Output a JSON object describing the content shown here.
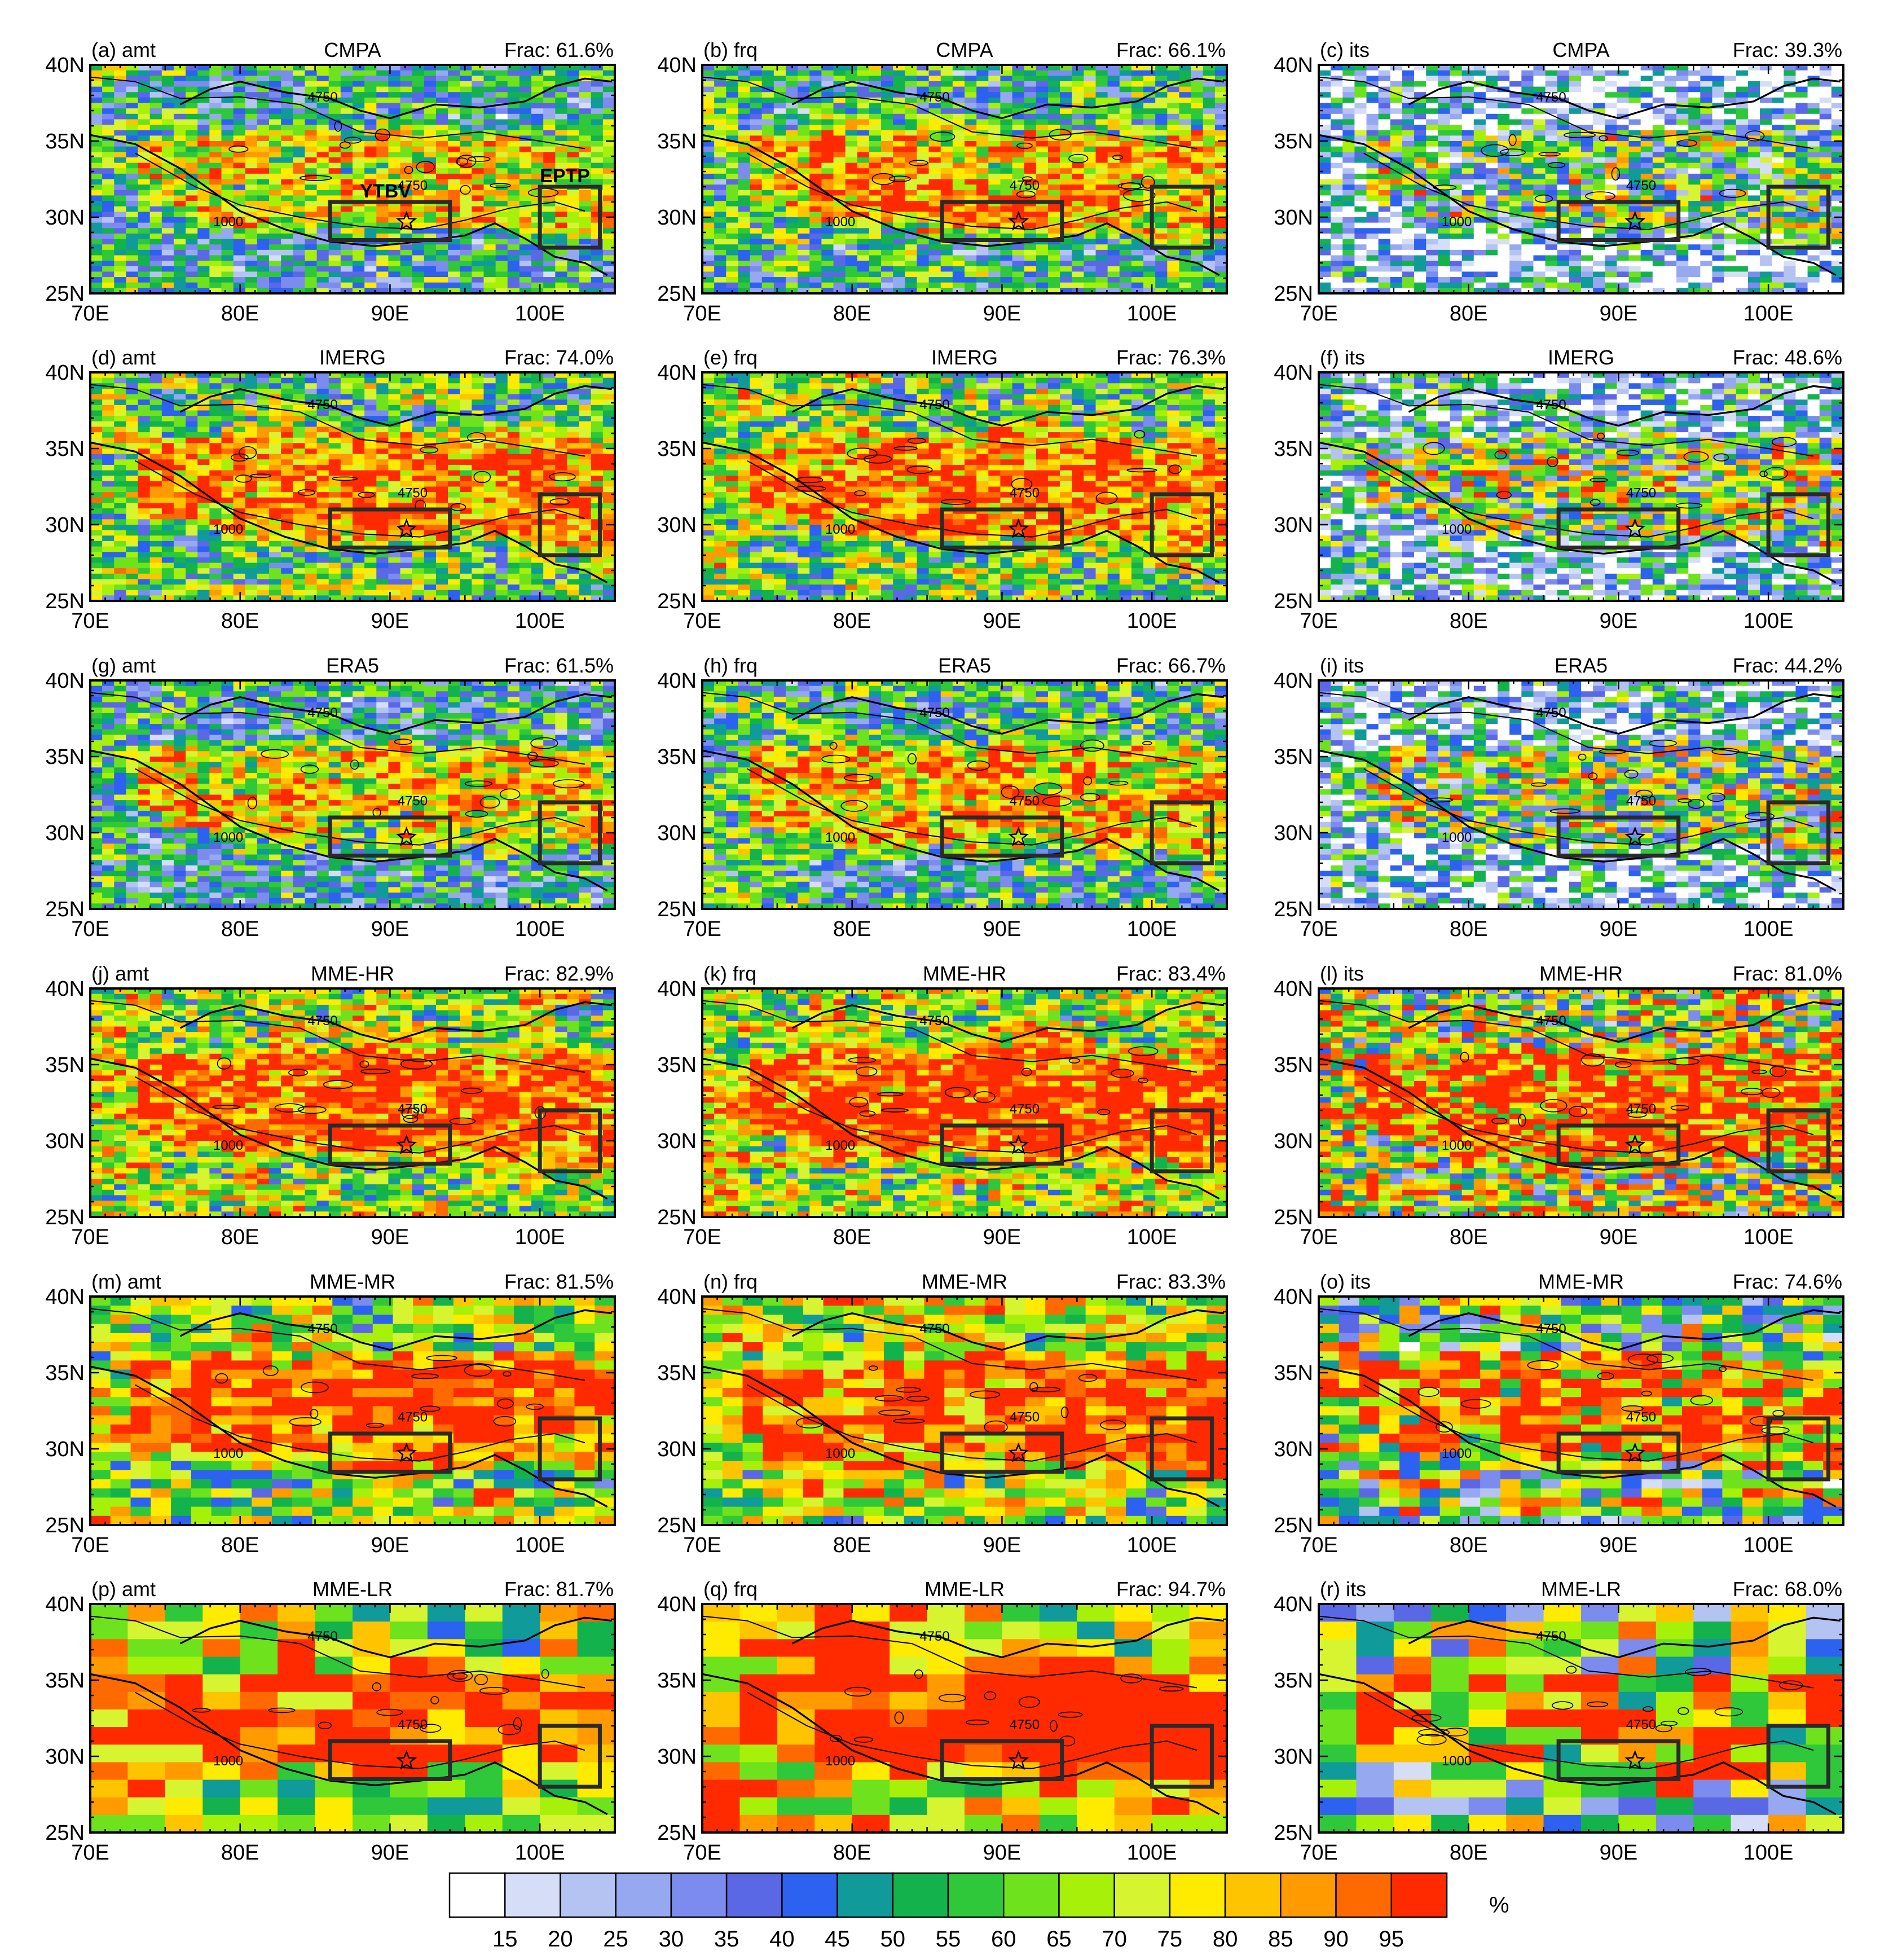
{
  "figure": {
    "legend_unit": "%",
    "colorbar": {
      "labels": [
        "15",
        "20",
        "25",
        "30",
        "35",
        "40",
        "45",
        "50",
        "55",
        "60",
        "65",
        "70",
        "75",
        "80",
        "85",
        "90",
        "95"
      ],
      "colors": [
        "#ffffff",
        "#d6ddf7",
        "#b5c3f2",
        "#96a9f0",
        "#7b8cee",
        "#5b68e6",
        "#2d61f0",
        "#109a9a",
        "#14b24c",
        "#2fc83a",
        "#6fe21e",
        "#a6f00a",
        "#d6f430",
        "#ffeb00",
        "#ffc400",
        "#ff9a00",
        "#ff6a00",
        "#ff2a00"
      ]
    },
    "axes": {
      "lon_ticks": [
        "70E",
        "80E",
        "90E",
        "100E"
      ],
      "lat_ticks": [
        "40N",
        "35N",
        "30N",
        "25N"
      ]
    },
    "contour_labels": [
      "4750",
      "1000"
    ],
    "annotations": {
      "ytbv": "YTBV",
      "eptp": "EPTP"
    }
  },
  "chart_data": {
    "type": "heatmap",
    "description_units": "%",
    "lon_range": [
      70,
      105
    ],
    "lat_range": [
      25,
      40
    ],
    "boxes": [
      {
        "name": "YTBV",
        "lon": [
          86,
          94
        ],
        "lat": [
          28.5,
          31
        ]
      },
      {
        "name": "EPTP",
        "lon": [
          100,
          104
        ],
        "lat": [
          28,
          32
        ]
      }
    ],
    "panels": [
      {
        "tag": "(a) amt",
        "dataset": "CMPA",
        "frac": "Frac: 61.6%",
        "mean": 61.6
      },
      {
        "tag": "(b) frq",
        "dataset": "CMPA",
        "frac": "Frac: 66.1%",
        "mean": 66.1
      },
      {
        "tag": "(c) its",
        "dataset": "CMPA",
        "frac": "Frac: 39.3%",
        "mean": 39.3
      },
      {
        "tag": "(d) amt",
        "dataset": "IMERG",
        "frac": "Frac: 74.0%",
        "mean": 74.0
      },
      {
        "tag": "(e) frq",
        "dataset": "IMERG",
        "frac": "Frac: 76.3%",
        "mean": 76.3
      },
      {
        "tag": "(f) its",
        "dataset": "IMERG",
        "frac": "Frac: 48.6%",
        "mean": 48.6
      },
      {
        "tag": "(g) amt",
        "dataset": "ERA5",
        "frac": "Frac: 61.5%",
        "mean": 61.5
      },
      {
        "tag": "(h) frq",
        "dataset": "ERA5",
        "frac": "Frac: 66.7%",
        "mean": 66.7
      },
      {
        "tag": "(i) its",
        "dataset": "ERA5",
        "frac": "Frac: 44.2%",
        "mean": 44.2
      },
      {
        "tag": "(j) amt",
        "dataset": "MME-HR",
        "frac": "Frac: 82.9%",
        "mean": 82.9
      },
      {
        "tag": "(k) frq",
        "dataset": "MME-HR",
        "frac": "Frac: 83.4%",
        "mean": 83.4
      },
      {
        "tag": "(l) its",
        "dataset": "MME-HR",
        "frac": "Frac: 81.0%",
        "mean": 81.0
      },
      {
        "tag": "(m) amt",
        "dataset": "MME-MR",
        "frac": "Frac: 81.5%",
        "mean": 81.5
      },
      {
        "tag": "(n) frq",
        "dataset": "MME-MR",
        "frac": "Frac: 83.3%",
        "mean": 83.3
      },
      {
        "tag": "(o) its",
        "dataset": "MME-MR",
        "frac": "Frac: 74.6%",
        "mean": 74.6
      },
      {
        "tag": "(p) amt",
        "dataset": "MME-LR",
        "frac": "Frac: 81.7%",
        "mean": 81.7
      },
      {
        "tag": "(q) frq",
        "dataset": "MME-LR",
        "frac": "Frac: 94.7%",
        "mean": 94.7
      },
      {
        "tag": "(r) its",
        "dataset": "MME-LR",
        "frac": "Frac: 68.0%",
        "mean": 68.0
      }
    ]
  }
}
